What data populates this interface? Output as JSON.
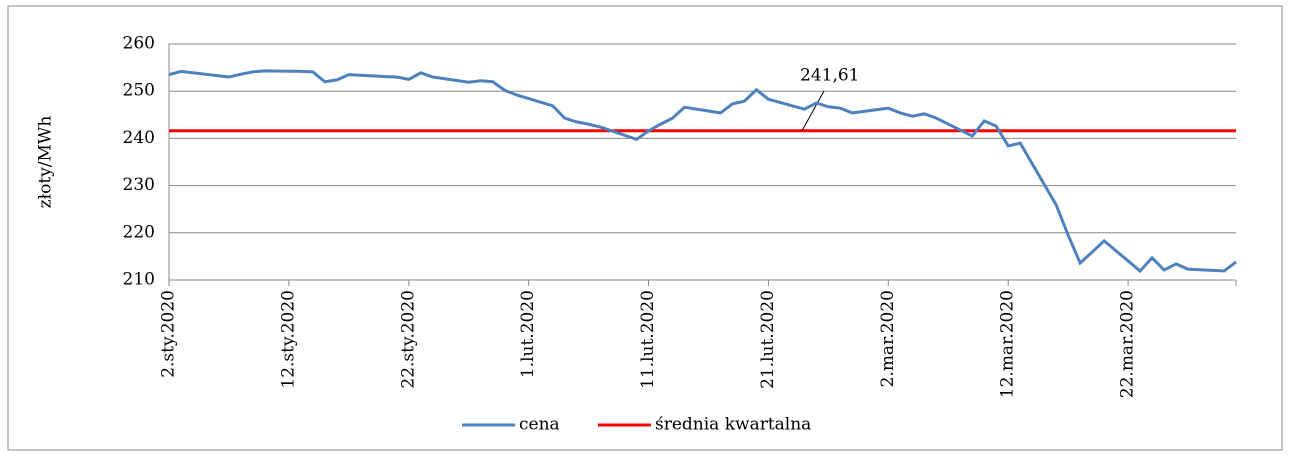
{
  "chart_data": {
    "type": "line",
    "y_label": "złoty/MWh",
    "x": [
      "2020-01-02",
      "2020-01-03",
      "2020-01-07",
      "2020-01-08",
      "2020-01-09",
      "2020-01-10",
      "2020-01-13",
      "2020-01-14",
      "2020-01-15",
      "2020-01-16",
      "2020-01-17",
      "2020-01-20",
      "2020-01-21",
      "2020-01-22",
      "2020-01-23",
      "2020-01-24",
      "2020-01-27",
      "2020-01-28",
      "2020-01-29",
      "2020-01-30",
      "2020-01-31",
      "2020-02-03",
      "2020-02-04",
      "2020-02-05",
      "2020-02-06",
      "2020-02-07",
      "2020-02-10",
      "2020-02-11",
      "2020-02-12",
      "2020-02-13",
      "2020-02-14",
      "2020-02-17",
      "2020-02-18",
      "2020-02-19",
      "2020-02-20",
      "2020-02-21",
      "2020-02-24",
      "2020-02-25",
      "2020-02-26",
      "2020-02-27",
      "2020-02-28",
      "2020-03-02",
      "2020-03-03",
      "2020-03-04",
      "2020-03-05",
      "2020-03-06",
      "2020-03-09",
      "2020-03-10",
      "2020-03-11",
      "2020-03-12",
      "2020-03-13",
      "2020-03-16",
      "2020-03-17",
      "2020-03-18",
      "2020-03-19",
      "2020-03-20",
      "2020-03-23",
      "2020-03-24",
      "2020-03-25",
      "2020-03-26",
      "2020-03-27",
      "2020-03-30",
      "2020-03-31"
    ],
    "series": [
      {
        "name": "cena",
        "color": "#4f81bd",
        "values": [
          253.5,
          254.2,
          253,
          253.6,
          254.1,
          254.3,
          254.2,
          254.1,
          252,
          252.4,
          253.5,
          253.1,
          253,
          252.5,
          253.9,
          253,
          251.9,
          252.2,
          252,
          250.2,
          249.2,
          246.9,
          244.3,
          243.5,
          243,
          242.4,
          239.8,
          241.6,
          243,
          244.3,
          246.6,
          245.4,
          247.3,
          247.9,
          250.3,
          248.3,
          246.2,
          247.5,
          246.7,
          246.4,
          245.4,
          246.4,
          245.4,
          244.7,
          245.2,
          244.3,
          240.5,
          243.7,
          242.6,
          238.4,
          239,
          225.9,
          219.5,
          213.6,
          215.9,
          218.3,
          211.9,
          214.7,
          212.1,
          213.4,
          212.3,
          211.9,
          213.8
        ]
      }
    ],
    "reference_line": {
      "name": "średnia kwartalna",
      "color": "#ff0000",
      "value": 241.61,
      "value_label": "241,61"
    },
    "ylim": [
      210,
      260
    ],
    "yticks": [
      210,
      220,
      230,
      240,
      250,
      260
    ],
    "xlim": [
      "2020-01-02",
      "2020-03-31"
    ],
    "xticks": [
      {
        "value": "2020-01-02",
        "label": "2.sty.2020"
      },
      {
        "value": "2020-01-12",
        "label": "12.sty.2020"
      },
      {
        "value": "2020-01-22",
        "label": "22.sty.2020"
      },
      {
        "value": "2020-02-01",
        "label": "1.lut.2020"
      },
      {
        "value": "2020-02-11",
        "label": "11.lut.2020"
      },
      {
        "value": "2020-02-21",
        "label": "21.lut.2020"
      },
      {
        "value": "2020-03-02",
        "label": "2.mar.2020"
      },
      {
        "value": "2020-03-12",
        "label": "12.mar.2020"
      },
      {
        "value": "2020-03-22",
        "label": "22.mar.2020"
      }
    ],
    "grid": true
  }
}
